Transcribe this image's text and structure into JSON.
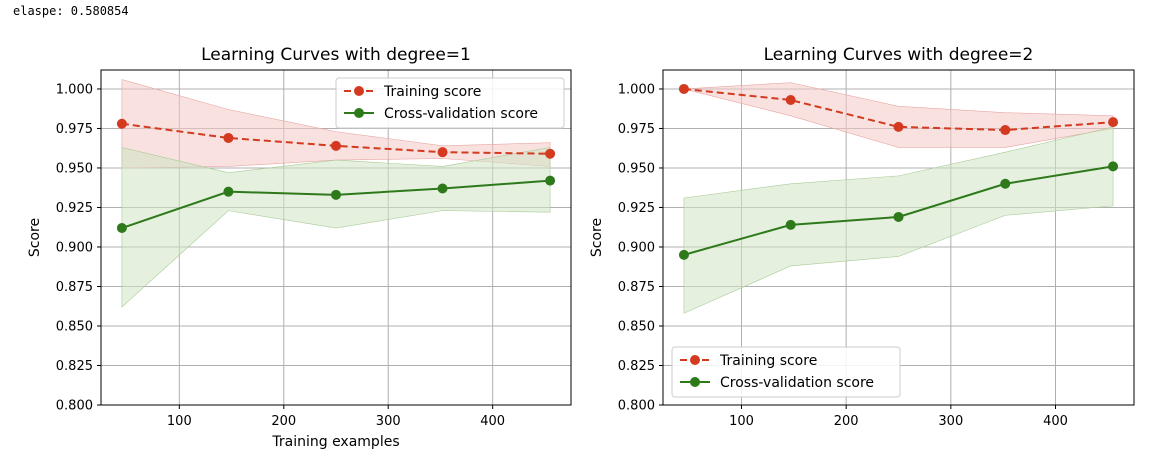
{
  "console": {
    "elapsed_text": "elaspe: 0.580854"
  },
  "colors": {
    "training": "#d33a1f",
    "validation": "#2e7a1b",
    "train_fill": "#f4c9c7",
    "val_fill": "#cfe3c4",
    "grid": "#b0b0b0"
  },
  "chart_data": [
    {
      "type": "line",
      "title": "Learning Curves with degree=1",
      "xlabel": "Training examples",
      "ylabel": "Score",
      "xlim": [
        25,
        475
      ],
      "ylim": [
        0.8,
        1.012
      ],
      "xticks": [
        100,
        200,
        300,
        400
      ],
      "yticks": [
        0.8,
        0.825,
        0.85,
        0.875,
        0.9,
        0.925,
        0.95,
        0.975,
        1.0
      ],
      "ytick_labels": [
        "0.800",
        "0.825",
        "0.850",
        "0.875",
        "0.900",
        "0.925",
        "0.950",
        "0.975",
        "1.000"
      ],
      "legend_position": "top-right",
      "x": [
        45,
        147,
        250,
        352,
        455
      ],
      "series": [
        {
          "name": "Training score",
          "style": "dashed",
          "values": [
            0.978,
            0.969,
            0.964,
            0.96,
            0.959
          ],
          "lower": [
            0.95,
            0.951,
            0.955,
            0.956,
            0.951
          ],
          "upper": [
            1.006,
            0.987,
            0.973,
            0.964,
            0.966
          ]
        },
        {
          "name": "Cross-validation score",
          "style": "solid",
          "values": [
            0.912,
            0.935,
            0.933,
            0.937,
            0.942
          ],
          "lower": [
            0.862,
            0.923,
            0.912,
            0.923,
            0.922
          ],
          "upper": [
            0.963,
            0.947,
            0.955,
            0.951,
            0.963
          ]
        }
      ]
    },
    {
      "type": "line",
      "title": "Learning Curves with degree=2",
      "xlabel": "",
      "ylabel": "Score",
      "xlim": [
        25,
        475
      ],
      "ylim": [
        0.8,
        1.012
      ],
      "xticks": [
        100,
        200,
        300,
        400
      ],
      "yticks": [
        0.8,
        0.825,
        0.85,
        0.875,
        0.9,
        0.925,
        0.95,
        0.975,
        1.0
      ],
      "ytick_labels": [
        "0.800",
        "0.825",
        "0.850",
        "0.875",
        "0.900",
        "0.925",
        "0.950",
        "0.975",
        "1.000"
      ],
      "legend_position": "bottom-left",
      "x": [
        45,
        147,
        250,
        352,
        455
      ],
      "series": [
        {
          "name": "Training score",
          "style": "dashed",
          "values": [
            1.0,
            0.993,
            0.976,
            0.974,
            0.979
          ],
          "lower": [
            1.0,
            0.983,
            0.963,
            0.963,
            0.975
          ],
          "upper": [
            1.0,
            1.004,
            0.989,
            0.985,
            0.983
          ]
        },
        {
          "name": "Cross-validation score",
          "style": "solid",
          "values": [
            0.895,
            0.914,
            0.919,
            0.94,
            0.951
          ],
          "lower": [
            0.858,
            0.888,
            0.894,
            0.92,
            0.926
          ],
          "upper": [
            0.931,
            0.94,
            0.945,
            0.96,
            0.976
          ]
        }
      ]
    }
  ]
}
